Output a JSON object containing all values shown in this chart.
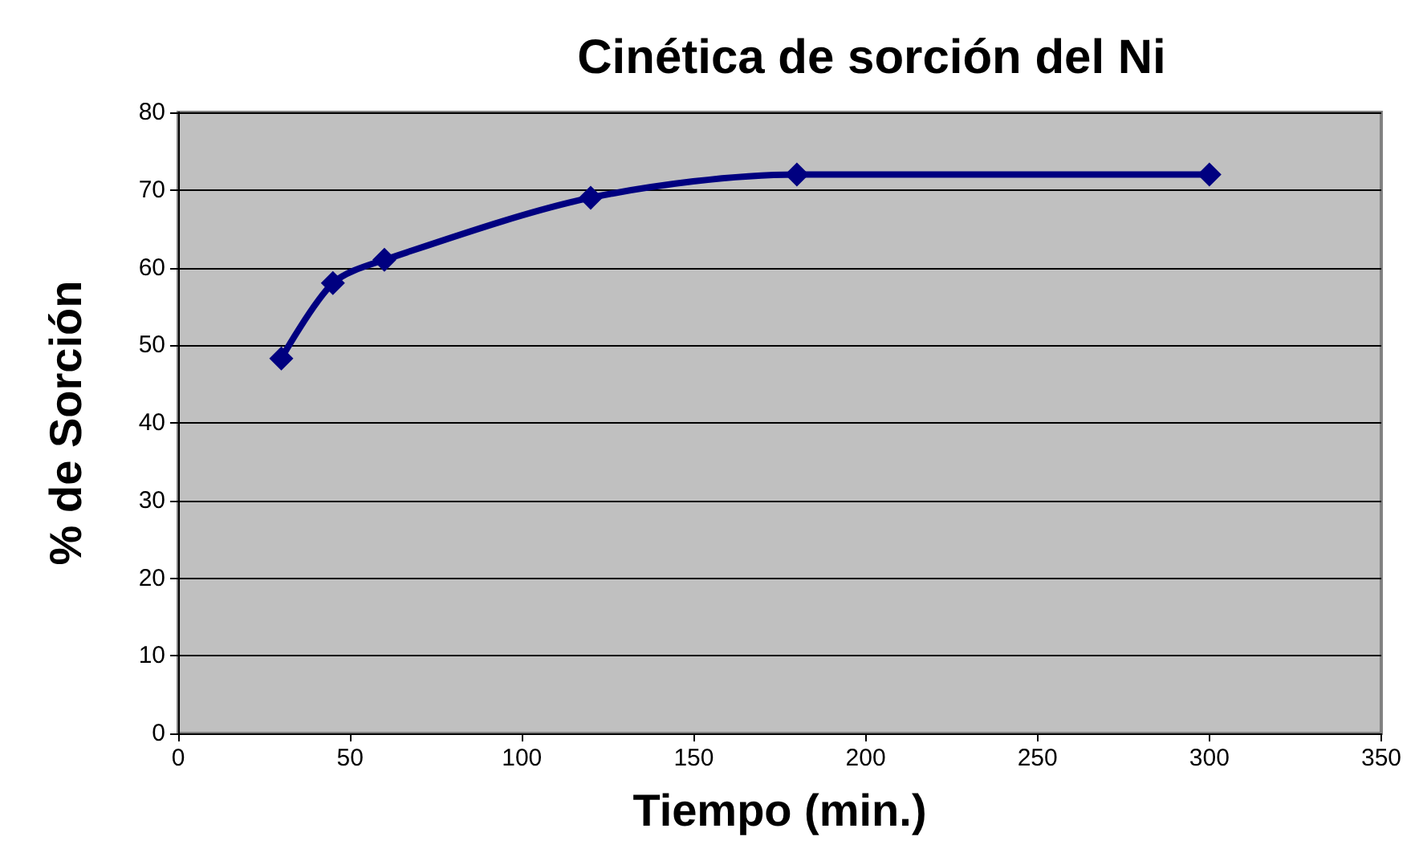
{
  "chart_data": {
    "type": "line",
    "title": "Cinética de sorción del Ni",
    "xlabel": "Tiempo (min.)",
    "ylabel": "% de Sorción",
    "x": [
      30,
      45,
      60,
      120,
      180,
      300
    ],
    "series": [
      {
        "color": "#000080",
        "values": [
          48.3,
          58,
          61,
          69,
          72,
          72
        ]
      }
    ],
    "xlim": [
      0,
      350
    ],
    "xticks": [
      0,
      50,
      100,
      150,
      200,
      250,
      300,
      350
    ],
    "ylim": [
      0,
      80
    ],
    "yticks": [
      0,
      10,
      20,
      30,
      40,
      50,
      60,
      70,
      80
    ],
    "grid": "y",
    "marker": "diamond",
    "line_style": "solid"
  }
}
